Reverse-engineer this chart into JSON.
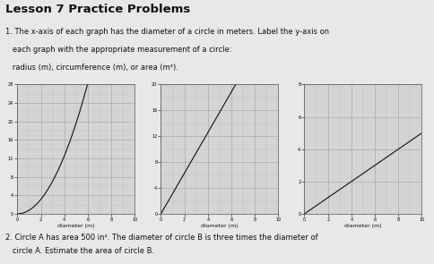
{
  "title": "Lesson 7 Practice Problems",
  "problem1_line1": "1. The x-axis of each graph has the diameter of a circle in meters. Label the y-axis on",
  "problem1_line2": "   each graph with the appropriate measurement of a circle:",
  "problem1_line3": "   radius (m), circumference (m), or area (m²).",
  "problem2_line1": "2. Circle A has area 500 in². The diameter of circle B is three times the diameter of",
  "problem2_line2": "   circle A. Estimate the area of circle B.",
  "graph1": {
    "xlabel": "diameter (m)",
    "xlim": [
      0,
      10
    ],
    "ylim": [
      0,
      28
    ],
    "curve": "area",
    "yticks": [
      0,
      4,
      8,
      12,
      16,
      20,
      24,
      28
    ],
    "xticks": [
      0,
      2,
      4,
      6,
      8,
      10
    ],
    "minor_yticks": [
      0,
      2,
      4,
      6,
      8,
      10,
      12,
      14,
      16,
      18,
      20,
      22,
      24,
      26,
      28
    ],
    "minor_xticks": [
      0,
      1,
      2,
      3,
      4,
      5,
      6,
      7,
      8,
      9,
      10
    ]
  },
  "graph2": {
    "xlabel": "diameter (m)",
    "xlim": [
      0,
      10
    ],
    "ylim": [
      0,
      20
    ],
    "curve": "circumference",
    "yticks": [
      0,
      4,
      8,
      12,
      16,
      20
    ],
    "xticks": [
      0,
      2,
      4,
      6,
      8,
      10
    ],
    "minor_yticks": [
      0,
      2,
      4,
      6,
      8,
      10,
      12,
      14,
      16,
      18,
      20
    ],
    "minor_xticks": [
      0,
      1,
      2,
      3,
      4,
      5,
      6,
      7,
      8,
      9,
      10
    ]
  },
  "graph3": {
    "xlabel": "diameter (m)",
    "xlim": [
      0,
      10
    ],
    "ylim": [
      0,
      8
    ],
    "curve": "radius",
    "yticks": [
      0,
      2,
      4,
      6,
      8
    ],
    "xticks": [
      0,
      2,
      4,
      6,
      8,
      10
    ],
    "minor_yticks": [
      0,
      1,
      2,
      3,
      4,
      5,
      6,
      7,
      8
    ],
    "minor_xticks": [
      0,
      1,
      2,
      3,
      4,
      5,
      6,
      7,
      8,
      9,
      10
    ]
  },
  "bg_color": "#e8e8e8",
  "plot_bg_color": "#d4d4d4",
  "grid_color": "#999999",
  "minor_grid_color": "#bbbbbb",
  "line_color": "#111111",
  "text_color": "#111111",
  "title_fontsize": 9.5,
  "label_fontsize": 4.5,
  "text_fontsize": 6.0,
  "tick_fontsize": 3.5
}
